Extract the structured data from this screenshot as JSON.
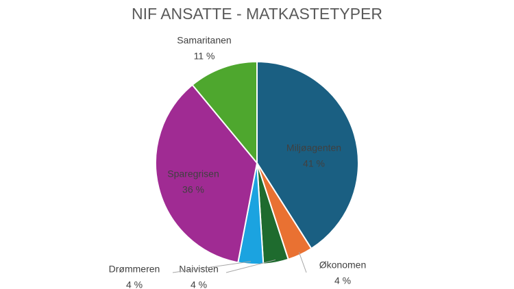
{
  "chart_data": {
    "type": "pie",
    "title": "NIF ANSATTE - MATKASTETYPER",
    "categories": [
      "Miljøagenten",
      "Økonomen",
      "Naivisten",
      "Drømmeren",
      "Sparegrisen",
      "Samaritanen"
    ],
    "values": [
      41,
      4,
      4,
      4,
      36,
      11
    ],
    "value_labels": [
      "41 %",
      "4 %",
      "4 %",
      "4 %",
      "36 %",
      "11 %"
    ],
    "colors": [
      "#1a5f82",
      "#e97132",
      "#1e6b2e",
      "#1ba3e0",
      "#a02b93",
      "#4ea72e"
    ]
  }
}
